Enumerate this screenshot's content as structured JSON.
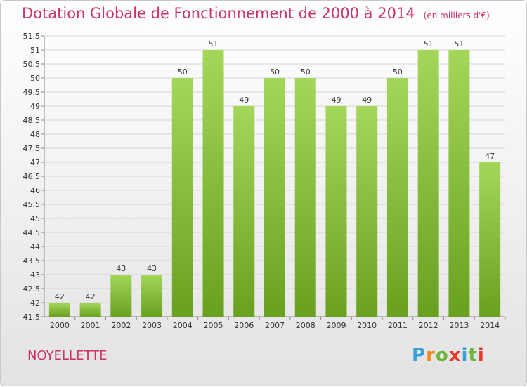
{
  "header": {
    "title": "Dotation Globale de Fonctionnement de 2000 à 2014",
    "unit": "(en milliers d'€)"
  },
  "footer": {
    "place": "NOYELLETTE",
    "logo": "Proxiti"
  },
  "colors": {
    "title": "#cc3366",
    "bar_light": "#a4d65a",
    "bar_dark": "#6aa01f",
    "logo_letters": [
      "#3aa0d8",
      "#f08a1e",
      "#6cb33f",
      "#e5392e",
      "#3aa0d8",
      "#6cb33f",
      "#e5392e"
    ]
  },
  "chart_data": {
    "type": "bar",
    "categories": [
      "2000",
      "2001",
      "2002",
      "2003",
      "2004",
      "2005",
      "2006",
      "2007",
      "2008",
      "2009",
      "2010",
      "2011",
      "2012",
      "2013",
      "2014"
    ],
    "values": [
      42,
      42,
      43,
      43,
      50,
      51,
      49,
      50,
      50,
      49,
      49,
      50,
      51,
      51,
      47
    ],
    "value_labels": [
      "42",
      "42",
      "43",
      "43",
      "50",
      "51",
      "49",
      "50",
      "50",
      "49",
      "49",
      "50",
      "51",
      "51",
      "47"
    ],
    "ylim": [
      41.5,
      51.5
    ],
    "yticks": [
      "41.5",
      "42",
      "42.5",
      "43",
      "43.5",
      "44",
      "44.5",
      "45",
      "45.5",
      "46",
      "46.5",
      "47",
      "47.5",
      "48",
      "48.5",
      "49",
      "49.5",
      "50",
      "50.5",
      "51",
      "51.5"
    ],
    "grid": true,
    "xlabel": "",
    "ylabel": ""
  }
}
